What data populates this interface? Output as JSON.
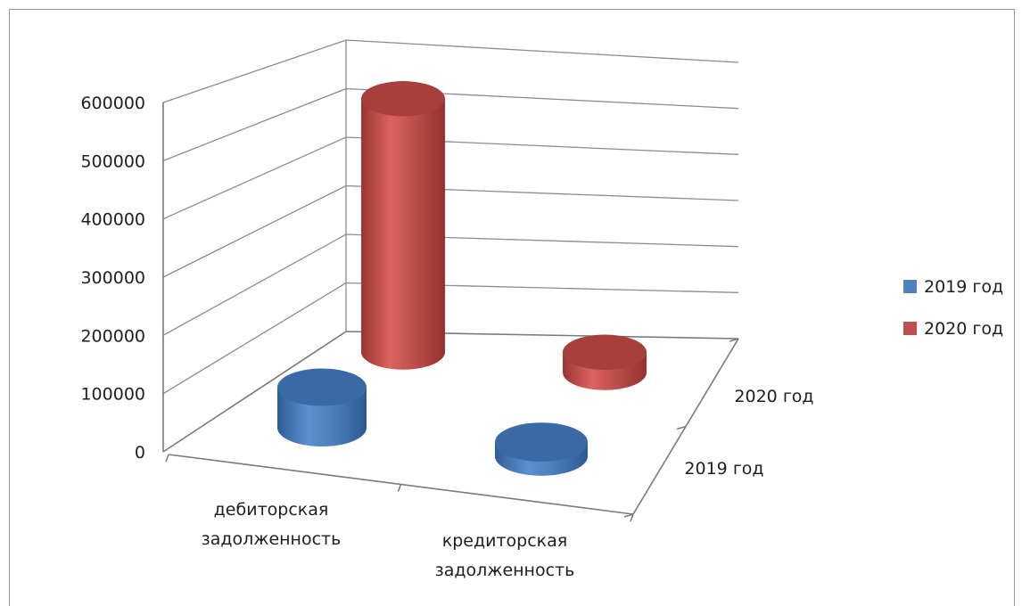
{
  "chart_data": {
    "type": "bar",
    "style": "3d-cylinder",
    "categories": [
      "дебиторская задолженность",
      "кредиторская задолженность"
    ],
    "category_lines": [
      [
        "дебиторская",
        "задолженность"
      ],
      [
        "кредиторская",
        "задолженность"
      ]
    ],
    "depth_labels": [
      "2019 год",
      "2020 год"
    ],
    "series": [
      {
        "name": "2019 год",
        "values": [
          80000,
          28000
        ],
        "color": "#4f81bd"
      },
      {
        "name": "2020 год",
        "values": [
          500000,
          40000
        ],
        "color": "#c0504d"
      }
    ],
    "ylim": [
      0,
      600000
    ],
    "y_ticks": [
      "0",
      "100000",
      "200000",
      "300000",
      "400000",
      "500000",
      "600000"
    ],
    "grid": true,
    "legend_position": "right"
  }
}
